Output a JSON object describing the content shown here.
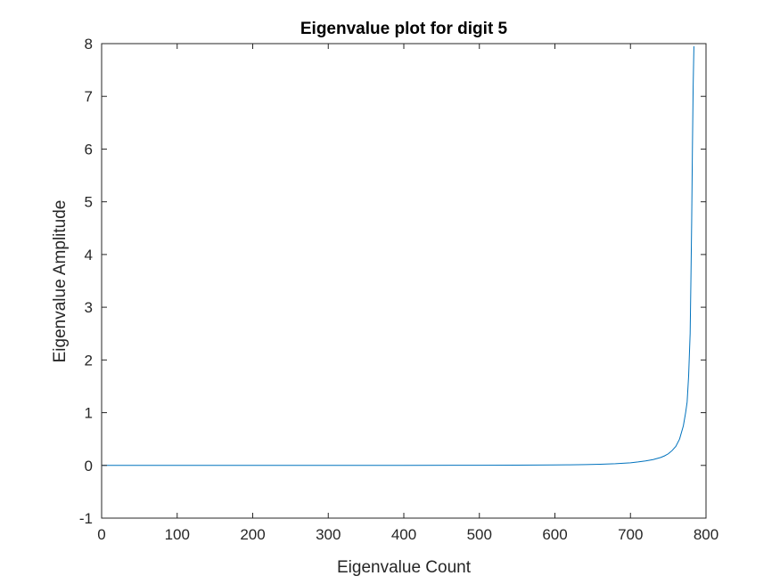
{
  "chart_data": {
    "type": "line",
    "title": "Eigenvalue plot for digit 5",
    "xlabel": "Eigenvalue Count",
    "ylabel": "Eigenvalue Amplitude",
    "xlim": [
      0,
      800
    ],
    "ylim": [
      -1,
      8
    ],
    "xticks": [
      0,
      100,
      200,
      300,
      400,
      500,
      600,
      700,
      800
    ],
    "yticks": [
      -1,
      0,
      1,
      2,
      3,
      4,
      5,
      6,
      7,
      8
    ],
    "xtick_labels": [
      "0",
      "100",
      "200",
      "300",
      "400",
      "500",
      "600",
      "700",
      "800"
    ],
    "ytick_labels": [
      "-1",
      "0",
      "1",
      "2",
      "3",
      "4",
      "5",
      "6",
      "7",
      "8"
    ],
    "grid": false,
    "line_color": "#0072bd",
    "series": [
      {
        "x": [
          1,
          100,
          200,
          300,
          400,
          500,
          550,
          600,
          620,
          640,
          660,
          680,
          700,
          710,
          720,
          730,
          740,
          745,
          750,
          755,
          760,
          765,
          770,
          773,
          775,
          777,
          779,
          780,
          781,
          782,
          783,
          784
        ],
        "values": [
          0,
          0,
          0,
          0,
          0.001,
          0.003,
          0.005,
          0.008,
          0.011,
          0.015,
          0.022,
          0.032,
          0.05,
          0.065,
          0.085,
          0.11,
          0.15,
          0.18,
          0.22,
          0.28,
          0.36,
          0.5,
          0.75,
          1.0,
          1.2,
          1.7,
          2.5,
          3.5,
          4.6,
          6.0,
          7.2,
          7.95
        ]
      }
    ]
  }
}
